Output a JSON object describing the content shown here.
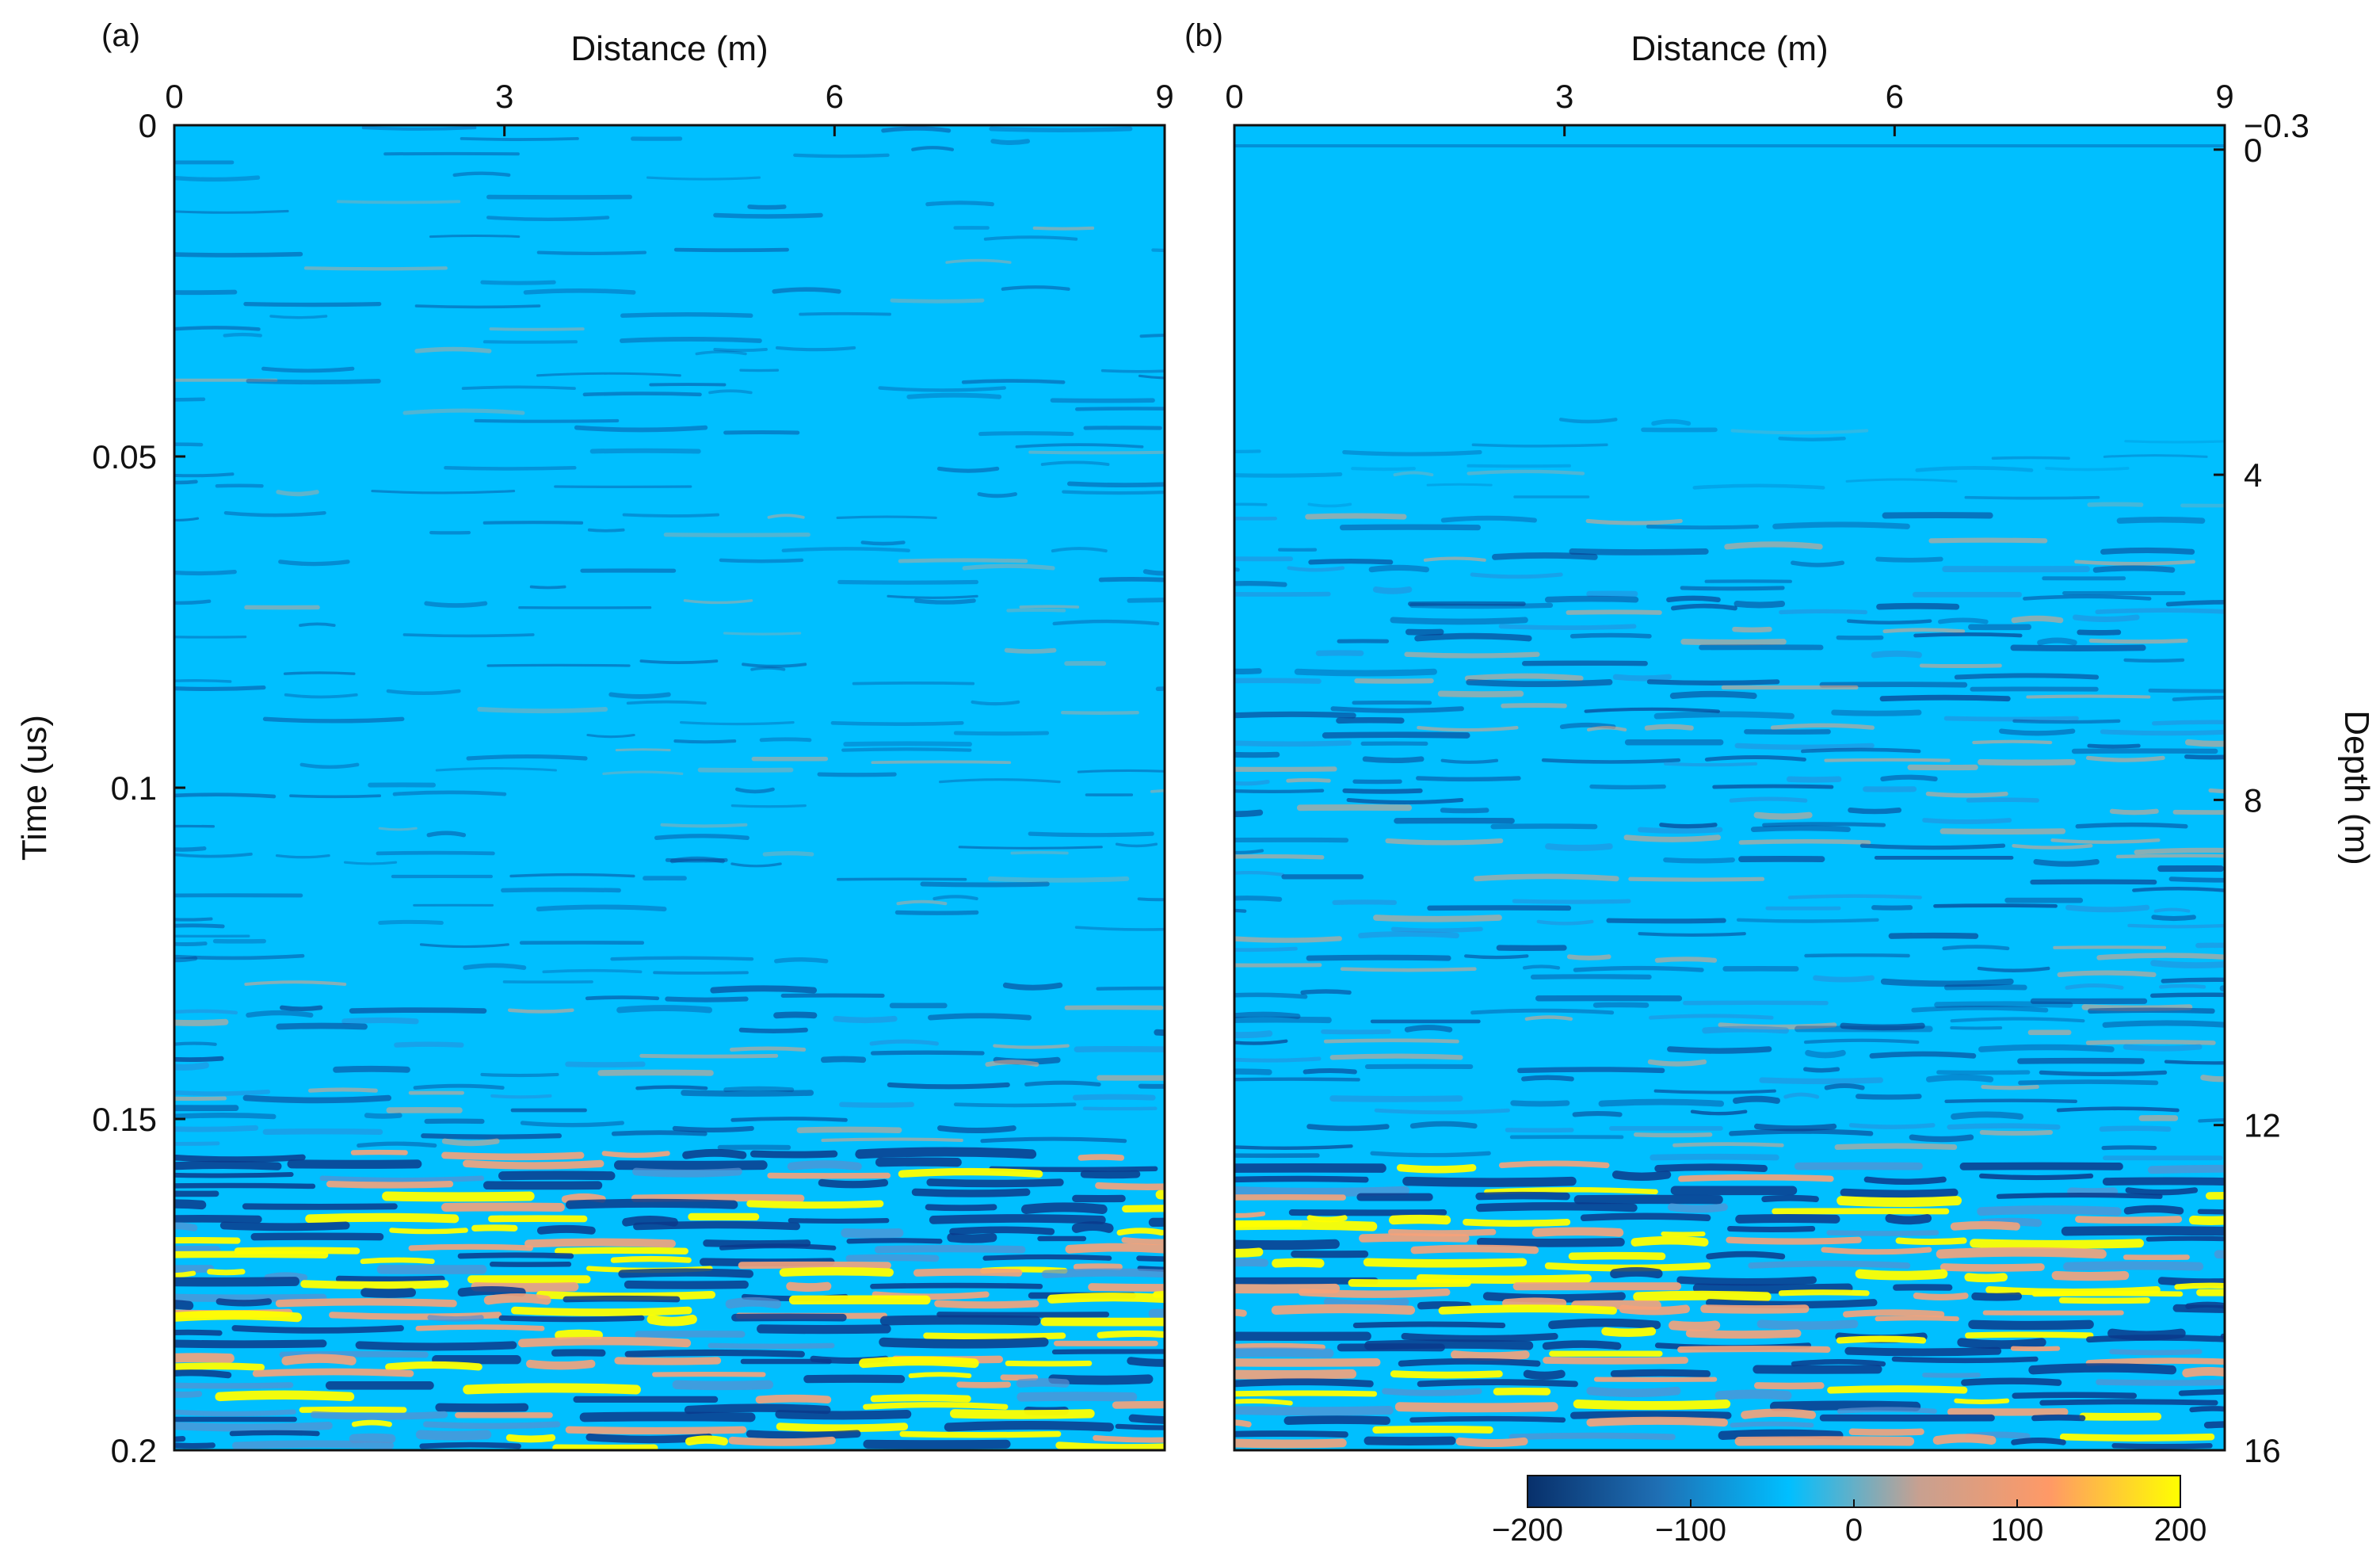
{
  "colors": {
    "scale_stops": [
      "#08306b",
      "#1f6fb4",
      "#00bfff",
      "#c8a090",
      "#ff9966",
      "#ffff00"
    ],
    "background": "#00bfff",
    "dark_band": "#0a3a8c",
    "bright_band": "#ffff00",
    "warm_band": "#f6a27a"
  },
  "chart_data": [
    {
      "type": "heatmap",
      "panel_label": "(a)",
      "xlabel": "Distance (m)",
      "ylabel": "Time (us)",
      "xlim": [
        0,
        9
      ],
      "ylim": [
        0,
        0.2
      ],
      "x_ticks": [
        "0",
        "3",
        "6",
        "9"
      ],
      "x_tick_values": [
        0,
        3,
        6,
        9
      ],
      "y_ticks": [
        "0",
        "0.05",
        "0.1",
        "0.15",
        "0.2"
      ],
      "y_tick_values": [
        0,
        0.05,
        0.1,
        0.15,
        0.2
      ],
      "y_axis_side": "left",
      "strong_reflection_start": 0.155,
      "moderate_reflection_start": 0.13
    },
    {
      "type": "heatmap",
      "panel_label": "(b)",
      "xlabel": "Distance (m)",
      "ylabel": "Depth (m)",
      "xlim": [
        0,
        9
      ],
      "ylim": [
        -0.3,
        16
      ],
      "x_ticks": [
        "0",
        "3",
        "6",
        "9"
      ],
      "x_tick_values": [
        0,
        3,
        6,
        9
      ],
      "y_ticks": [
        "−0.3",
        "0",
        "4",
        "8",
        "12",
        "16"
      ],
      "y_tick_values": [
        -0.3,
        0,
        4,
        8,
        12,
        16
      ],
      "y_axis_side": "right",
      "strong_reflection_start": 12.4,
      "moderate_reflection_start": 4.5
    }
  ],
  "colorbar": {
    "range": [
      -200,
      200
    ],
    "ticks": [
      "−200",
      "−100",
      "0",
      "100",
      "200"
    ],
    "tick_values": [
      -200,
      -100,
      0,
      100,
      200
    ]
  }
}
